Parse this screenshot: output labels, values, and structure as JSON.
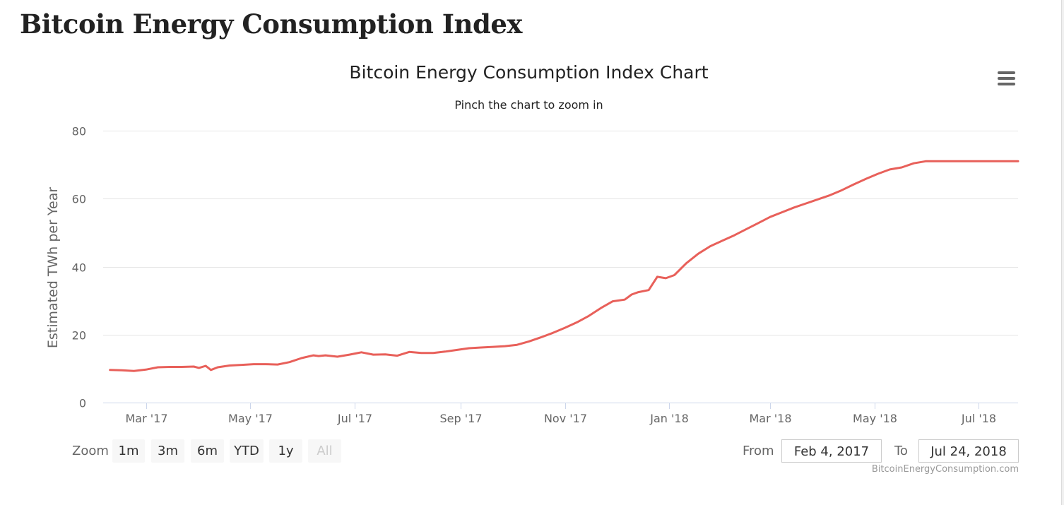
{
  "page": {
    "title": "Bitcoin Energy Consumption Index"
  },
  "chart": {
    "title": "Bitcoin Energy Consumption Index Chart",
    "subtitle": "Pinch the chart to zoom in",
    "menu_icon": "hamburger-menu-icon",
    "credit": "BitcoinEnergyConsumption.com"
  },
  "range_selector": {
    "zoom_label": "Zoom",
    "buttons": [
      {
        "label": "1m",
        "enabled": true
      },
      {
        "label": "3m",
        "enabled": true
      },
      {
        "label": "6m",
        "enabled": true
      },
      {
        "label": "YTD",
        "enabled": true
      },
      {
        "label": "1y",
        "enabled": true
      },
      {
        "label": "All",
        "enabled": false
      }
    ],
    "from_label": "From",
    "from_value": "Feb 4, 2017",
    "to_label": "To",
    "to_value": "Jul 24, 2018"
  },
  "colors": {
    "series_line": "#e8605a",
    "grid": "#e6e6e6",
    "axis_text": "#666666",
    "axis_line": "#ccd6eb"
  },
  "chart_data": {
    "type": "line",
    "title": "Bitcoin Energy Consumption Index Chart",
    "subtitle": "Pinch the chart to zoom in",
    "xlabel": "",
    "ylabel": "Estimated TWh per Year",
    "ylim": [
      0,
      80
    ],
    "xlim": [
      "2017-02-04",
      "2018-07-24"
    ],
    "yticks": [
      0,
      20,
      40,
      60,
      80
    ],
    "xticks": [
      {
        "date": "2017-03-01",
        "label": "Mar '17"
      },
      {
        "date": "2017-05-01",
        "label": "May '17"
      },
      {
        "date": "2017-07-01",
        "label": "Jul '17"
      },
      {
        "date": "2017-09-01",
        "label": "Sep '17"
      },
      {
        "date": "2017-11-01",
        "label": "Nov '17"
      },
      {
        "date": "2018-01-01",
        "label": "Jan '18"
      },
      {
        "date": "2018-03-01",
        "label": "Mar '18"
      },
      {
        "date": "2018-05-01",
        "label": "May '18"
      },
      {
        "date": "2018-07-01",
        "label": "Jul '18"
      }
    ],
    "grid": true,
    "legend": "none",
    "series": [
      {
        "x": [
          "2017-02-08",
          "2017-02-15",
          "2017-02-22",
          "2017-03-01",
          "2017-03-08",
          "2017-03-15",
          "2017-03-22",
          "2017-03-29",
          "2017-04-01",
          "2017-04-05",
          "2017-04-08",
          "2017-04-12",
          "2017-04-19",
          "2017-04-26",
          "2017-05-03",
          "2017-05-10",
          "2017-05-17",
          "2017-05-24",
          "2017-05-31",
          "2017-06-07",
          "2017-06-10",
          "2017-06-14",
          "2017-06-21",
          "2017-06-28",
          "2017-07-05",
          "2017-07-12",
          "2017-07-19",
          "2017-07-26",
          "2017-08-02",
          "2017-08-09",
          "2017-08-16",
          "2017-08-23",
          "2017-08-30",
          "2017-09-06",
          "2017-09-13",
          "2017-09-20",
          "2017-09-27",
          "2017-10-04",
          "2017-10-11",
          "2017-10-18",
          "2017-10-25",
          "2017-11-01",
          "2017-11-08",
          "2017-11-15",
          "2017-11-22",
          "2017-11-29",
          "2017-12-06",
          "2017-12-10",
          "2017-12-14",
          "2017-12-20",
          "2017-12-25",
          "2017-12-30",
          "2018-01-04",
          "2018-01-11",
          "2018-01-18",
          "2018-01-25",
          "2018-02-01",
          "2018-02-08",
          "2018-02-15",
          "2018-02-22",
          "2018-03-01",
          "2018-03-08",
          "2018-03-15",
          "2018-03-22",
          "2018-03-29",
          "2018-04-05",
          "2018-04-12",
          "2018-04-19",
          "2018-04-26",
          "2018-05-03",
          "2018-05-10",
          "2018-05-17",
          "2018-05-24",
          "2018-05-31",
          "2018-06-03",
          "2018-06-07",
          "2018-06-11",
          "2018-06-18",
          "2018-06-25",
          "2018-07-02",
          "2018-07-09",
          "2018-07-16",
          "2018-07-24"
        ],
        "values": [
          9.6,
          9.5,
          9.3,
          9.7,
          10.4,
          10.5,
          10.5,
          10.6,
          10.2,
          10.8,
          9.6,
          10.4,
          10.9,
          11.1,
          11.3,
          11.3,
          11.2,
          11.9,
          13.1,
          13.9,
          13.7,
          13.9,
          13.5,
          14.1,
          14.8,
          14.1,
          14.2,
          13.8,
          14.9,
          14.6,
          14.6,
          15.0,
          15.5,
          16.0,
          16.2,
          16.4,
          16.6,
          17.0,
          18.0,
          19.2,
          20.5,
          22.0,
          23.6,
          25.5,
          27.8,
          29.8,
          30.3,
          31.8,
          32.5,
          33.1,
          37.0,
          36.6,
          37.5,
          41.0,
          43.8,
          46.0,
          47.6,
          49.2,
          51.0,
          52.8,
          54.6,
          56.0,
          57.4,
          58.6,
          59.8,
          61.0,
          62.5,
          64.2,
          65.8,
          67.3,
          68.6,
          69.2,
          70.4,
          71.0,
          71.0,
          71.0,
          71.0,
          71.0,
          71.0,
          71.0,
          71.0,
          71.0,
          71.0
        ]
      }
    ]
  }
}
